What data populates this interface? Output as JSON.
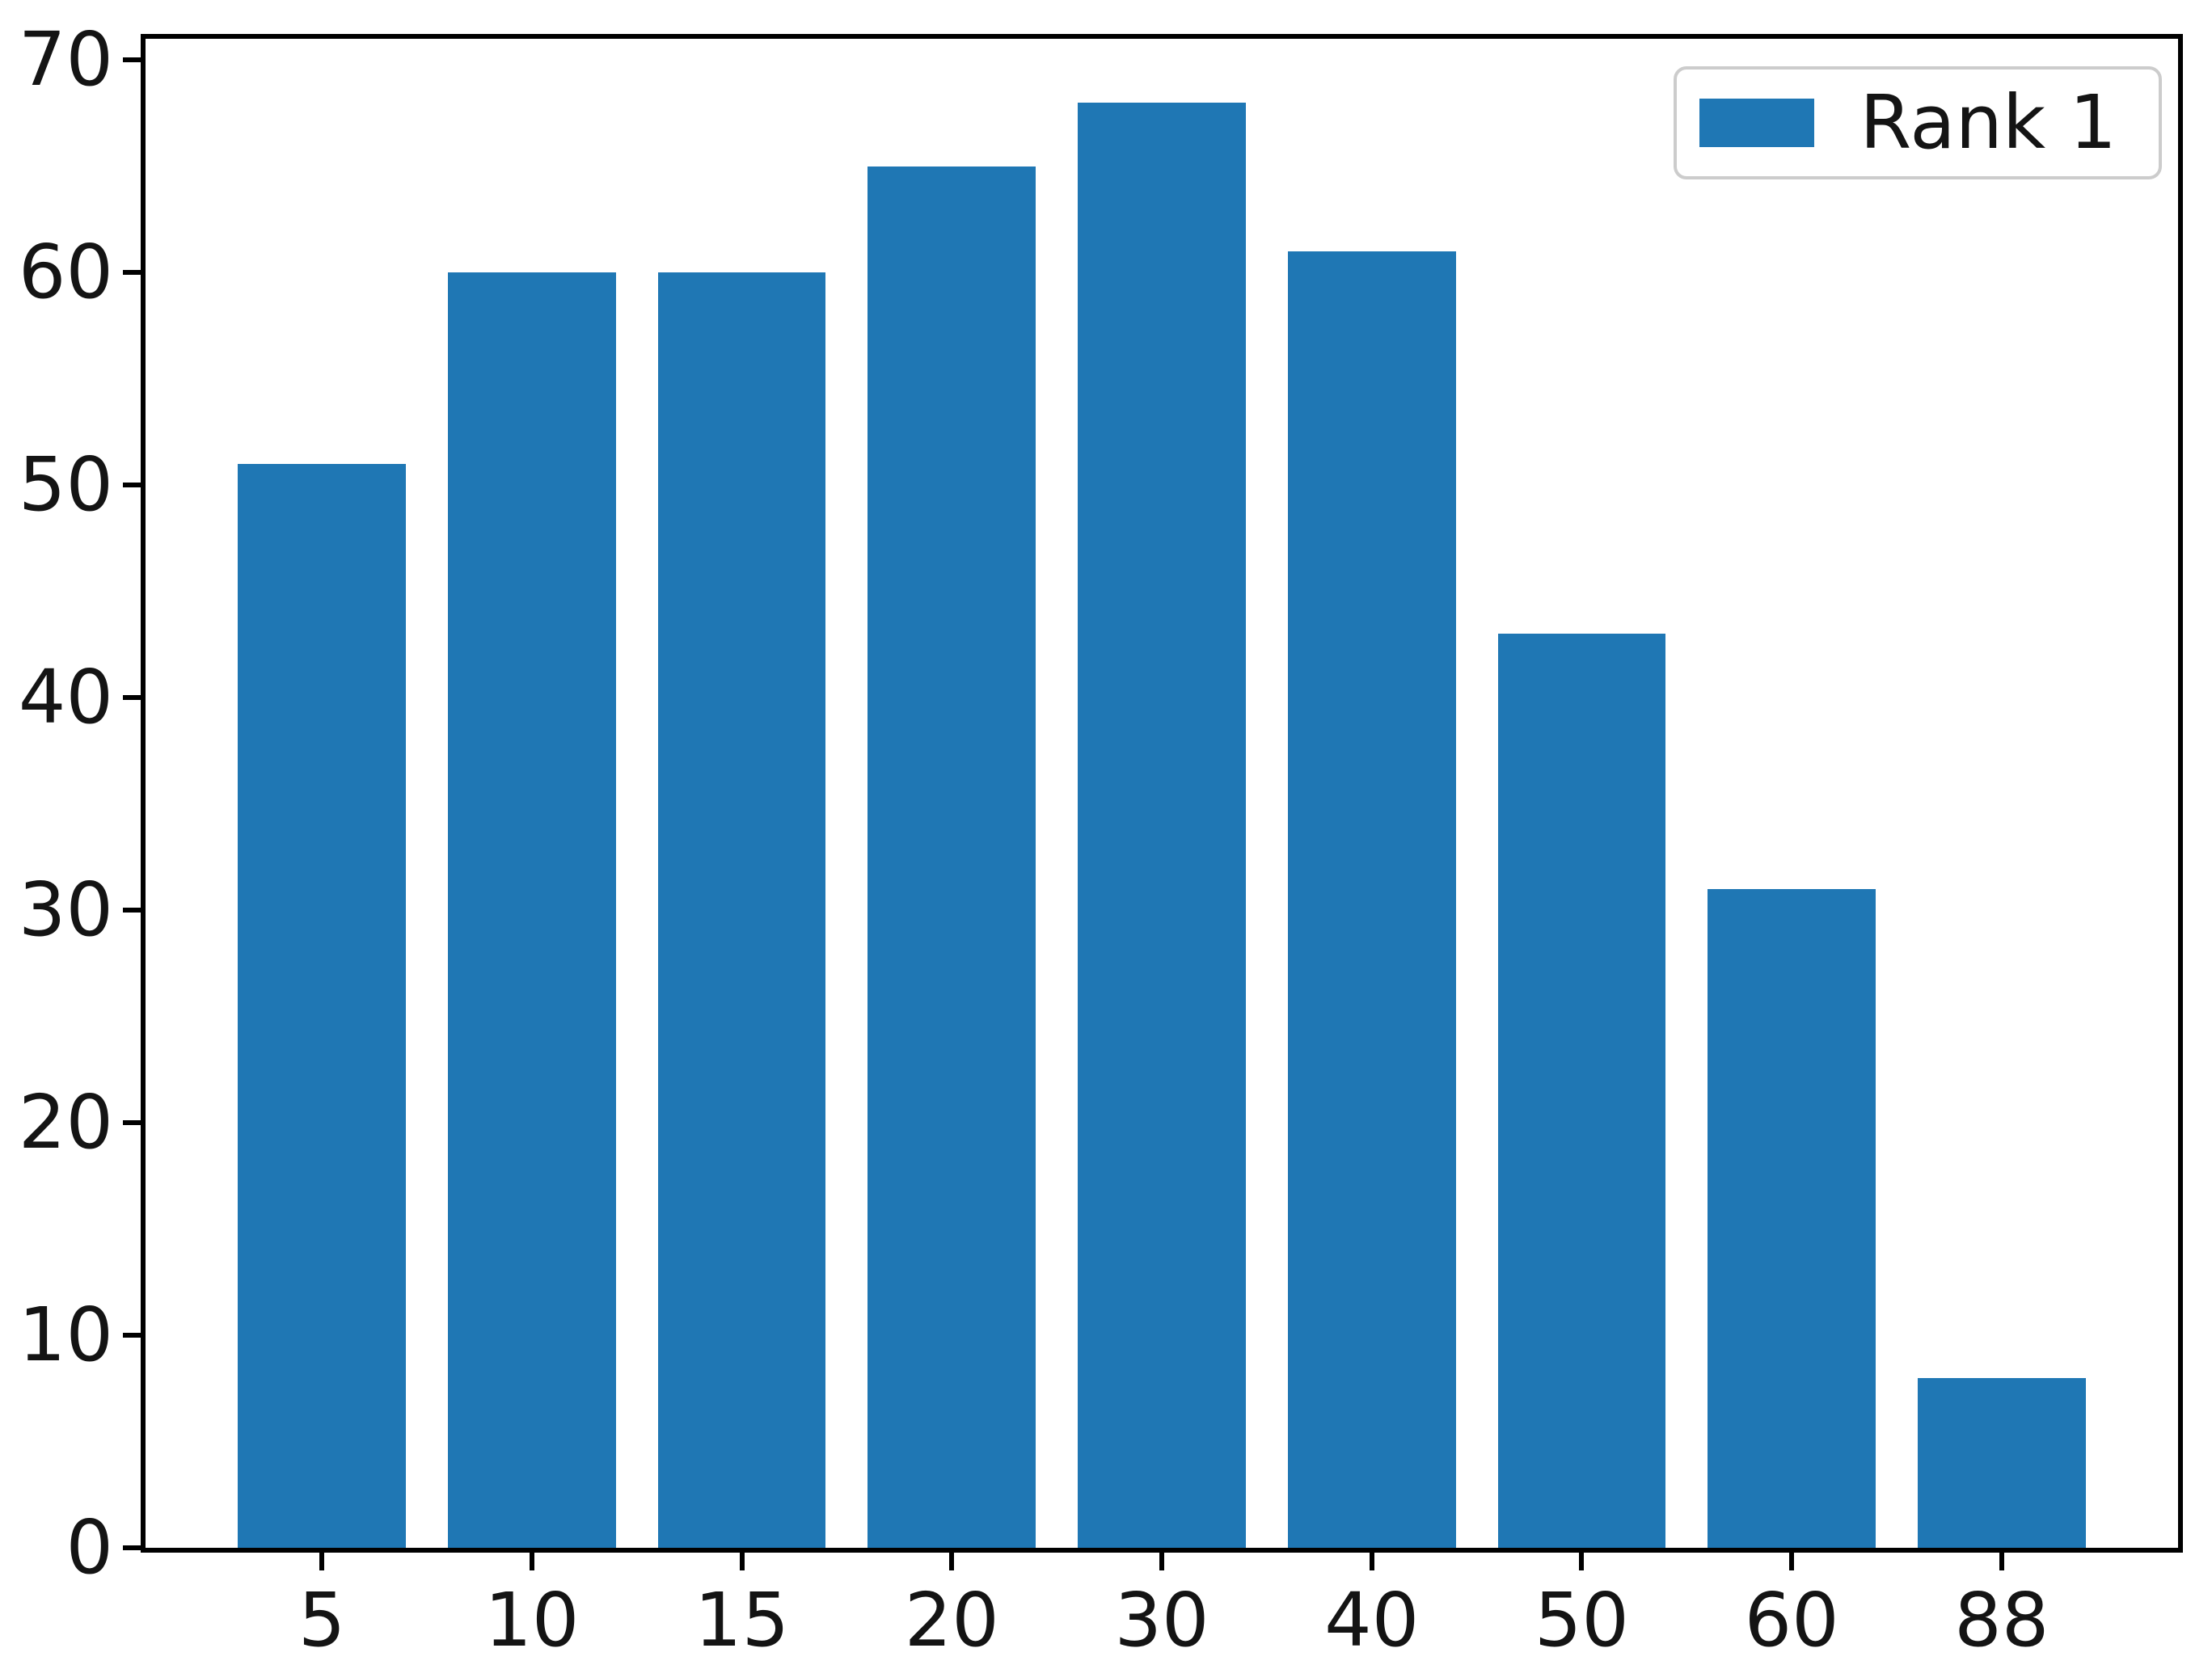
{
  "chart_data": {
    "type": "bar",
    "categories": [
      "5",
      "10",
      "15",
      "20",
      "30",
      "40",
      "50",
      "60",
      "88"
    ],
    "values": [
      51,
      60,
      60,
      65,
      68,
      61,
      43,
      31,
      8
    ],
    "series_name": "Rank 1",
    "title": "",
    "xlabel": "",
    "ylabel": "",
    "yticks": [
      0,
      10,
      20,
      30,
      40,
      50,
      60,
      70
    ],
    "ylim": [
      0,
      71
    ],
    "bar_color": "#1f77b4",
    "grid": false,
    "legend": {
      "label": "Rank 1",
      "position": "upper right"
    }
  },
  "colors": {
    "bar": "#1f77b4",
    "axis": "#000000",
    "tick_text": "#141414",
    "legend_border": "#cccccc",
    "background": "#ffffff"
  }
}
